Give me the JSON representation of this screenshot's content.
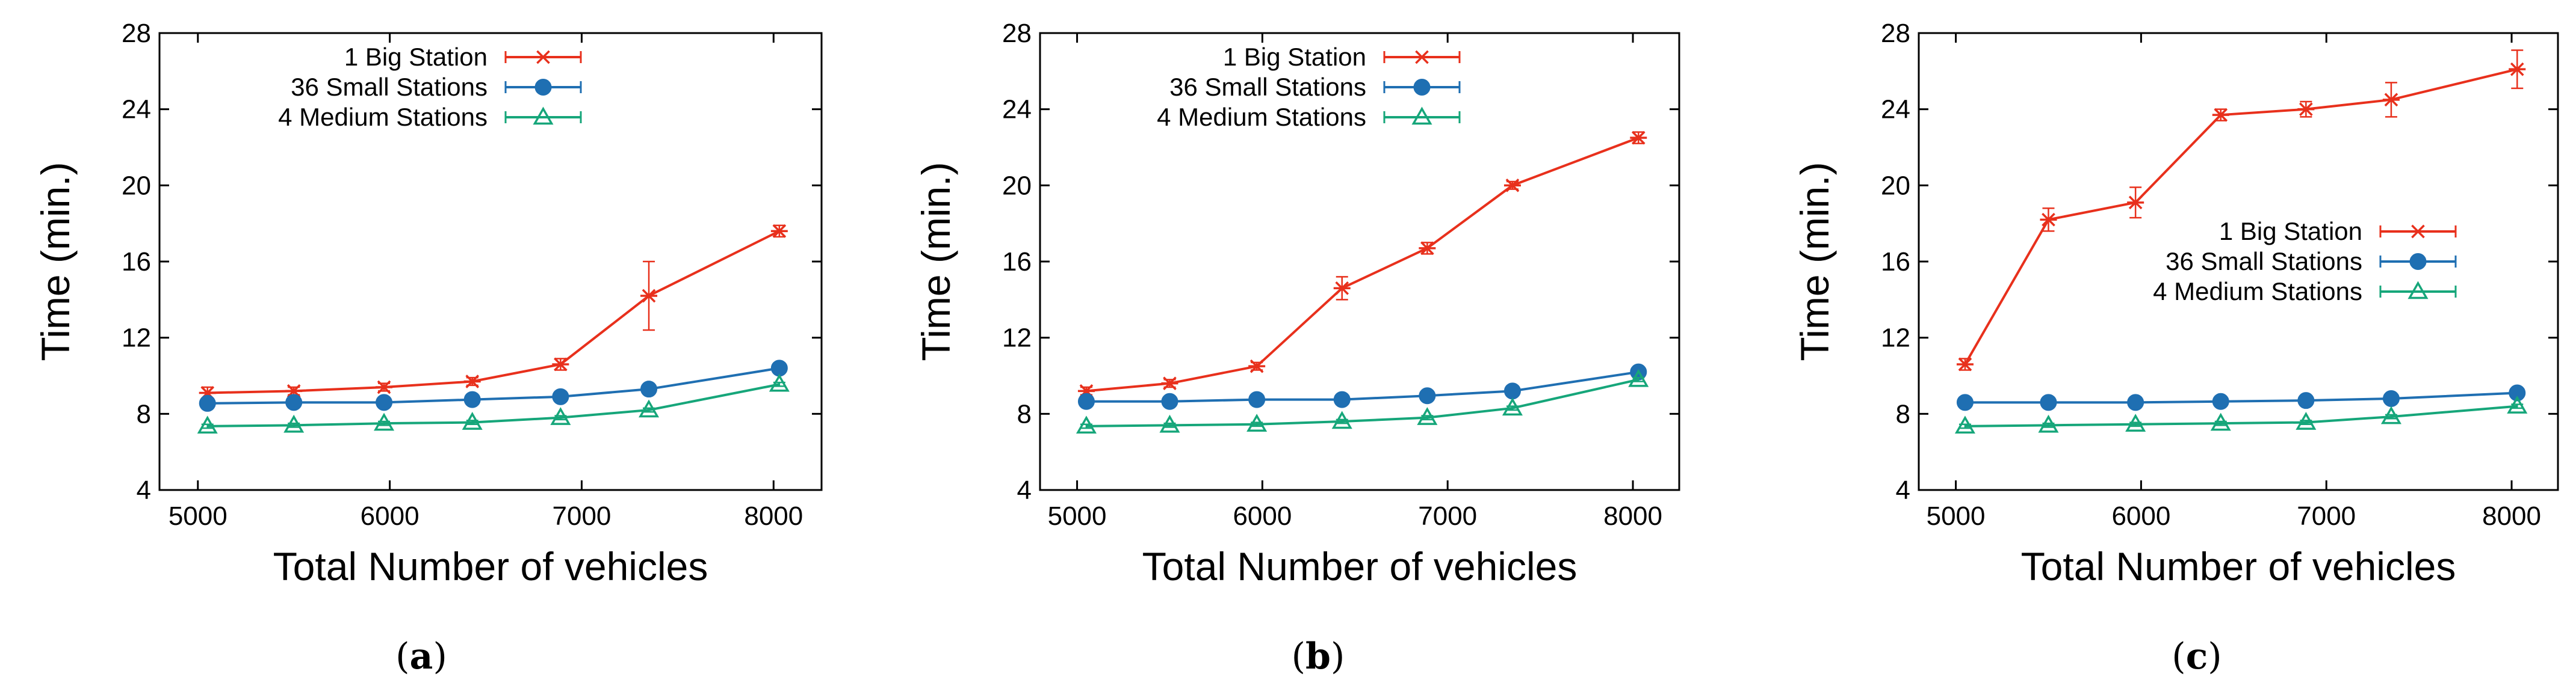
{
  "chart_data": [
    {
      "type": "line",
      "panel_label": "a",
      "xlabel": "Total Number of vehicles",
      "ylabel": "Time (min.)",
      "xlim": [
        4800,
        8250
      ],
      "ylim": [
        4,
        28
      ],
      "xticks": [
        5000,
        6000,
        7000,
        8000
      ],
      "yticks": [
        4,
        8,
        12,
        16,
        20,
        24,
        28
      ],
      "grid": false,
      "legend_position": "top-left",
      "x": [
        5050,
        5500,
        5970,
        6430,
        6890,
        7350,
        8030
      ],
      "series": [
        {
          "name": "1 Big Station",
          "color": "#e8301c",
          "marker": "asterisk",
          "values": [
            9.1,
            9.2,
            9.4,
            9.7,
            10.6,
            14.2,
            17.6
          ],
          "errors": [
            0.3,
            0.2,
            0.2,
            0.2,
            0.3,
            1.8,
            0.3
          ]
        },
        {
          "name": "36 Small Stations",
          "color": "#1f6fb2",
          "marker": "circle",
          "values": [
            8.55,
            8.6,
            8.6,
            8.75,
            8.9,
            9.3,
            10.4
          ],
          "errors": [
            0.1,
            0.1,
            0.1,
            0.1,
            0.1,
            0.15,
            0.15
          ]
        },
        {
          "name": "4 Medium Stations",
          "color": "#16a67a",
          "marker": "triangle",
          "values": [
            7.35,
            7.4,
            7.5,
            7.55,
            7.8,
            8.2,
            9.55
          ],
          "errors": [
            0.1,
            0.1,
            0.1,
            0.1,
            0.1,
            0.1,
            0.1
          ]
        }
      ]
    },
    {
      "type": "line",
      "panel_label": "b",
      "xlabel": "Total Number of vehicles",
      "ylabel": "Time (min.)",
      "xlim": [
        4800,
        8250
      ],
      "ylim": [
        4,
        28
      ],
      "xticks": [
        5000,
        6000,
        7000,
        8000
      ],
      "yticks": [
        4,
        8,
        12,
        16,
        20,
        24,
        28
      ],
      "grid": false,
      "legend_position": "top-left",
      "x": [
        5050,
        5500,
        5970,
        6430,
        6890,
        7350,
        8030
      ],
      "series": [
        {
          "name": "1 Big Station",
          "color": "#e8301c",
          "marker": "asterisk",
          "values": [
            9.2,
            9.6,
            10.5,
            14.6,
            16.7,
            20.0,
            22.5
          ],
          "errors": [
            0.2,
            0.2,
            0.2,
            0.6,
            0.3,
            0.2,
            0.3
          ]
        },
        {
          "name": "36 Small Stations",
          "color": "#1f6fb2",
          "marker": "circle",
          "values": [
            8.65,
            8.65,
            8.75,
            8.75,
            8.95,
            9.2,
            10.2
          ],
          "errors": [
            0.1,
            0.1,
            0.1,
            0.1,
            0.1,
            0.1,
            0.15
          ]
        },
        {
          "name": "4 Medium Stations",
          "color": "#16a67a",
          "marker": "triangle",
          "values": [
            7.35,
            7.4,
            7.45,
            7.6,
            7.8,
            8.3,
            9.8
          ],
          "errors": [
            0.1,
            0.1,
            0.1,
            0.1,
            0.1,
            0.1,
            0.1
          ]
        }
      ]
    },
    {
      "type": "line",
      "panel_label": "c",
      "xlabel": "Total Number of vehicles",
      "ylabel": "Time (min.)",
      "xlim": [
        4800,
        8250
      ],
      "ylim": [
        4,
        28
      ],
      "xticks": [
        5000,
        6000,
        7000,
        8000
      ],
      "yticks": [
        4,
        8,
        12,
        16,
        20,
        24,
        28
      ],
      "grid": false,
      "legend_position": "center-right",
      "x": [
        5050,
        5500,
        5970,
        6430,
        6890,
        7350,
        8030
      ],
      "series": [
        {
          "name": "1 Big Station",
          "color": "#e8301c",
          "marker": "asterisk",
          "values": [
            10.6,
            18.2,
            19.1,
            23.7,
            24.0,
            24.5,
            26.1
          ],
          "errors": [
            0.3,
            0.6,
            0.8,
            0.3,
            0.4,
            0.9,
            1.0
          ]
        },
        {
          "name": "36 Small Stations",
          "color": "#1f6fb2",
          "marker": "circle",
          "values": [
            8.6,
            8.6,
            8.6,
            8.65,
            8.7,
            8.8,
            9.1
          ],
          "errors": [
            0.1,
            0.1,
            0.1,
            0.1,
            0.1,
            0.1,
            0.1
          ]
        },
        {
          "name": "4 Medium Stations",
          "color": "#16a67a",
          "marker": "triangle",
          "values": [
            7.35,
            7.4,
            7.45,
            7.5,
            7.55,
            7.85,
            8.4
          ],
          "errors": [
            0.1,
            0.1,
            0.1,
            0.1,
            0.1,
            0.1,
            0.1
          ]
        }
      ]
    }
  ]
}
